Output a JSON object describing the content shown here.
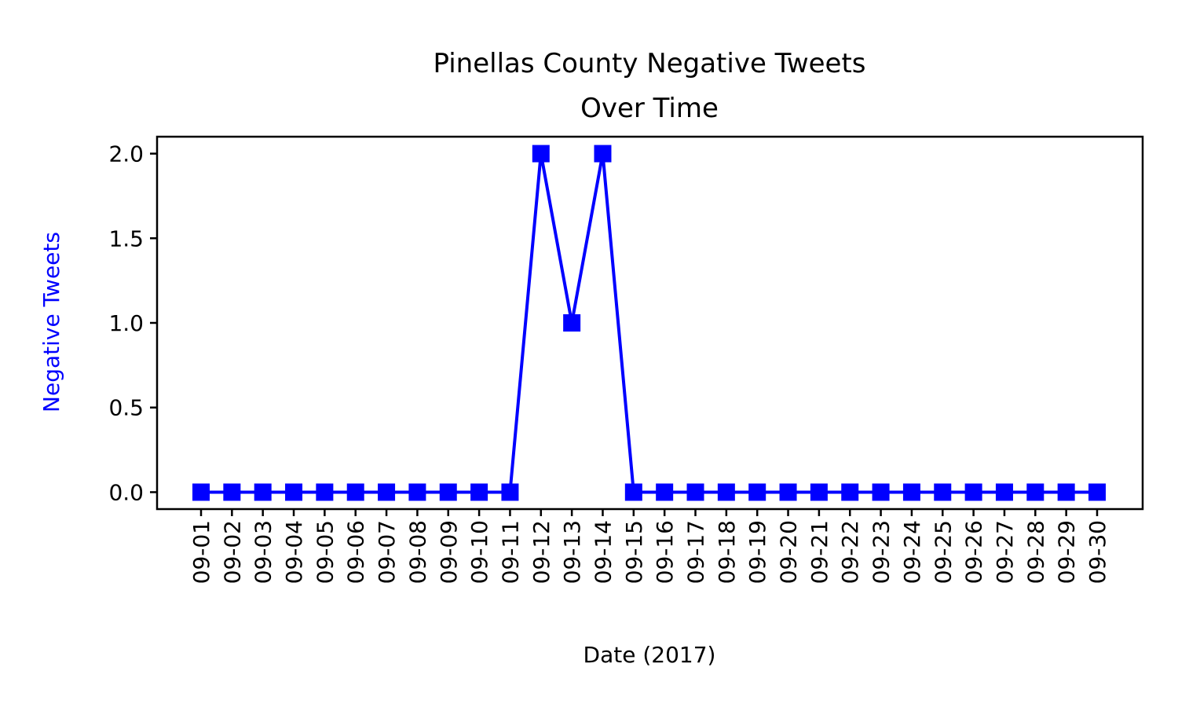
{
  "chart_data": {
    "type": "line",
    "title_lines": [
      "Pinellas County Negative Tweets",
      "Over Time"
    ],
    "xlabel": "Date (2017)",
    "ylabel": "Negative Tweets",
    "categories": [
      "09-01",
      "09-02",
      "09-03",
      "09-04",
      "09-05",
      "09-06",
      "09-07",
      "09-08",
      "09-09",
      "09-10",
      "09-11",
      "09-12",
      "09-13",
      "09-14",
      "09-15",
      "09-16",
      "09-17",
      "09-18",
      "09-19",
      "09-20",
      "09-21",
      "09-22",
      "09-23",
      "09-24",
      "09-25",
      "09-26",
      "09-27",
      "09-28",
      "09-29",
      "09-30"
    ],
    "series": [
      {
        "values": [
          0,
          0,
          0,
          0,
          0,
          0,
          0,
          0,
          0,
          0,
          0,
          2,
          1,
          2,
          0,
          0,
          0,
          0,
          0,
          0,
          0,
          0,
          0,
          0,
          0,
          0,
          0,
          0,
          0,
          0
        ],
        "color": "#0000ff",
        "marker": "square"
      }
    ],
    "ylim": [
      -0.1,
      2.1
    ],
    "yticks": [
      0.0,
      0.5,
      1.0,
      1.5,
      2.0
    ],
    "ytick_labels": [
      "0.0",
      "0.5",
      "1.0",
      "1.5",
      "2.0"
    ],
    "ylabel_color": "#0000ff",
    "grid": false,
    "legend": "none"
  }
}
